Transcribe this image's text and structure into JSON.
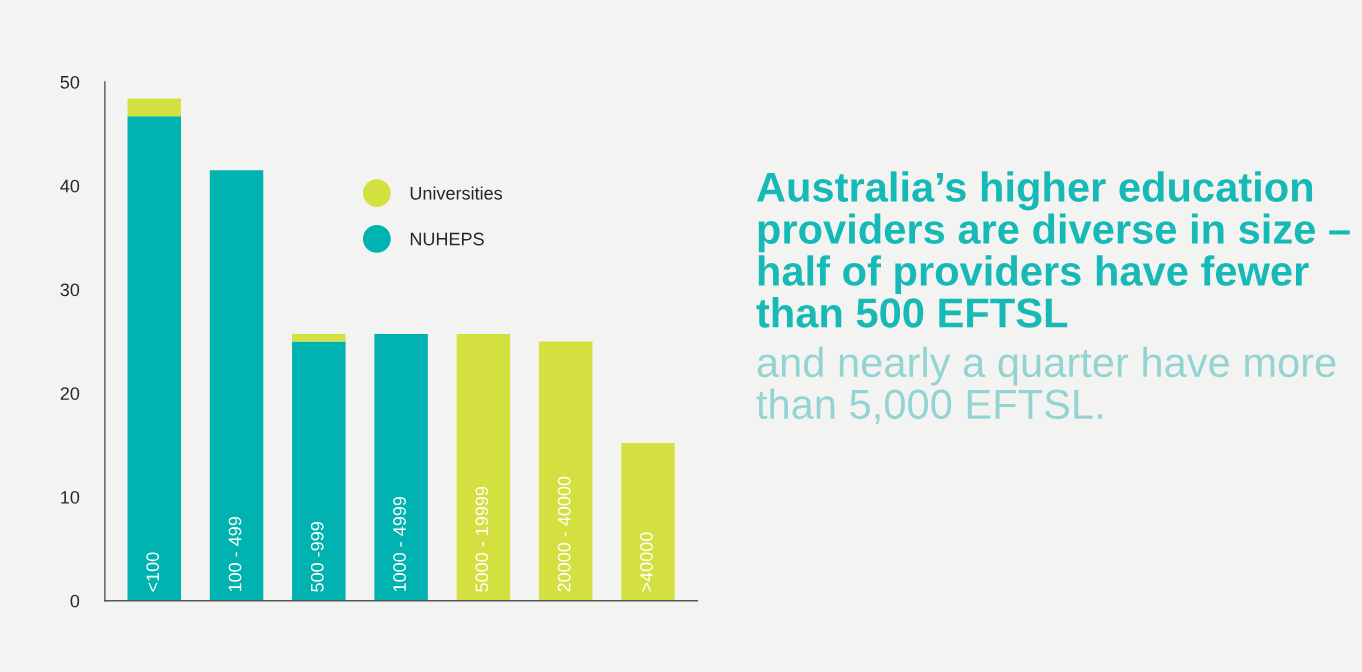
{
  "chart_data": {
    "type": "bar",
    "stacked": true,
    "title": "Australia’s higher education providers are diverse in size – half of providers have fewer than 500 EFTSL",
    "subtitle": "and nearly a quarter have more than 5,000 EFTSL.",
    "categories": [
      "<100",
      "100 - 499",
      "500 -999",
      "1000 - 4999",
      "5000 - 19999",
      "20000 - 40000",
      ">40000"
    ],
    "series": [
      {
        "name": "NUHEPS",
        "color": "#00b2b0",
        "values": [
          46.7,
          41.5,
          25,
          25.7,
          0,
          0,
          0
        ]
      },
      {
        "name": "Universities",
        "color": "#d4e040",
        "values": [
          1.7,
          0,
          0.7,
          0,
          25.7,
          25,
          15.2
        ]
      }
    ],
    "ylim": [
      0,
      50
    ],
    "yticks": [
      0,
      10,
      20,
      30,
      40,
      50
    ],
    "legend": "top",
    "grid": false
  }
}
